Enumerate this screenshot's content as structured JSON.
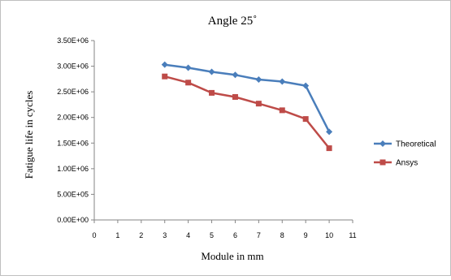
{
  "chart_data": {
    "type": "line",
    "title": "Angle 25˚",
    "xlabel": "Module in mm",
    "ylabel": "Fatigue life in  cycles",
    "xlim": [
      0,
      11
    ],
    "ylim": [
      0,
      3500000
    ],
    "x_ticks": [
      "0",
      "1",
      "2",
      "3",
      "4",
      "5",
      "6",
      "7",
      "8",
      "9",
      "10",
      "11"
    ],
    "y_ticks": [
      "0.00E+00",
      "5.00E+05",
      "1.00E+06",
      "1.50E+06",
      "2.00E+06",
      "2.50E+06",
      "3.00E+06",
      "3.50E+06"
    ],
    "grid": false,
    "legend_position": "right",
    "x": [
      3,
      4,
      5,
      6,
      7,
      8,
      9,
      10
    ],
    "series": [
      {
        "name": "Theoretical",
        "color": "#4a7ebb",
        "marker": "diamond",
        "values": [
          3030000,
          2970000,
          2890000,
          2830000,
          2740000,
          2700000,
          2620000,
          1720000
        ]
      },
      {
        "name": "Ansys",
        "color": "#be4b48",
        "marker": "square",
        "values": [
          2800000,
          2680000,
          2480000,
          2400000,
          2270000,
          2140000,
          1970000,
          1400000
        ]
      }
    ]
  }
}
